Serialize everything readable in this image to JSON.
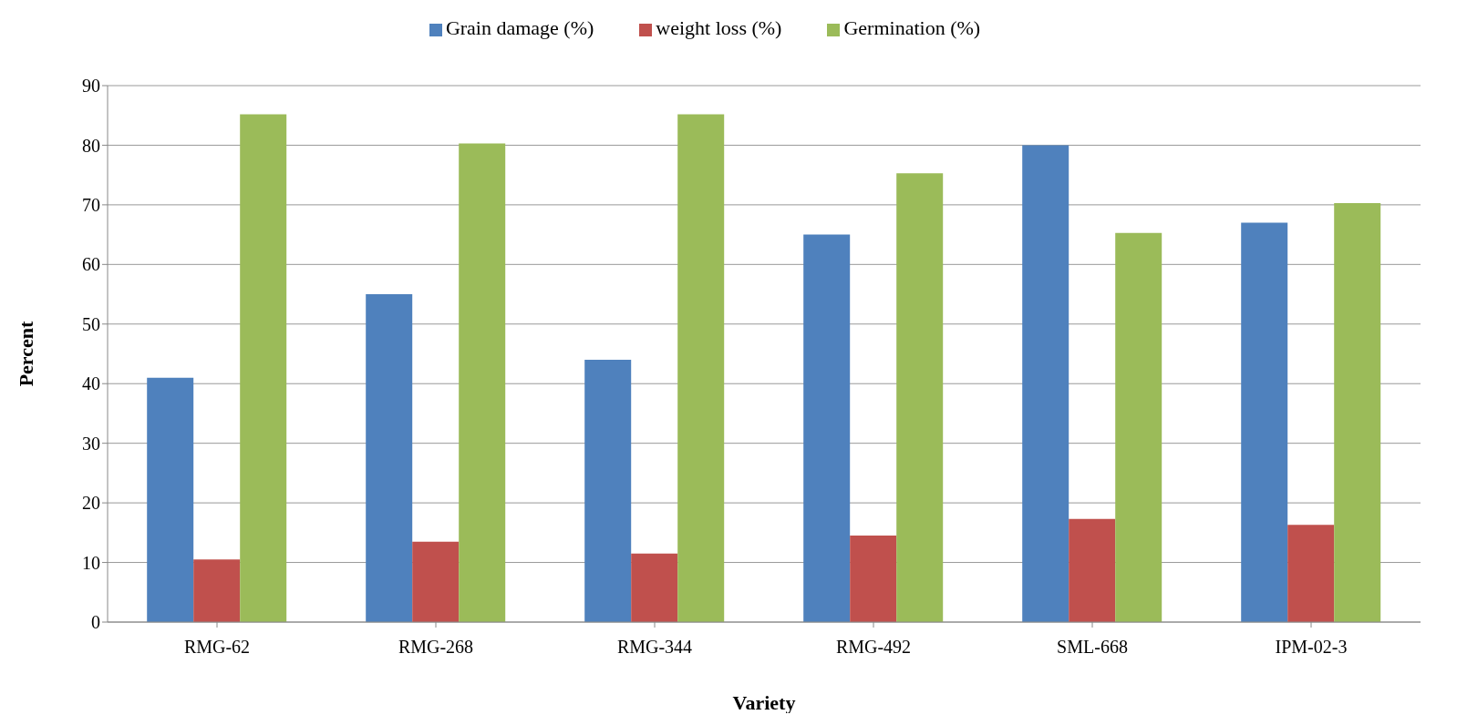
{
  "chart_data": {
    "type": "bar",
    "xlabel": "Variety",
    "ylabel": "Percent",
    "categories": [
      "RMG-62",
      "RMG-268",
      "RMG-344",
      "RMG-492",
      "SML-668",
      "IPM-02-3"
    ],
    "series": [
      {
        "name": "Grain damage (%)",
        "color": "#4f81bd",
        "values": [
          41,
          55,
          44,
          65,
          80,
          67
        ]
      },
      {
        "name": "weight loss (%)",
        "color": "#c0504d",
        "values": [
          10.5,
          13.5,
          11.5,
          14.5,
          17.3,
          16.3
        ]
      },
      {
        "name": "Germination (%)",
        "color": "#9bbb59",
        "values": [
          85.2,
          80.3,
          85.2,
          75.3,
          65.3,
          70.3
        ]
      }
    ],
    "ylim": [
      0,
      90
    ],
    "yticks": [
      0,
      10,
      20,
      30,
      40,
      50,
      60,
      70,
      80,
      90
    ],
    "grid": "y",
    "legend": "top"
  }
}
